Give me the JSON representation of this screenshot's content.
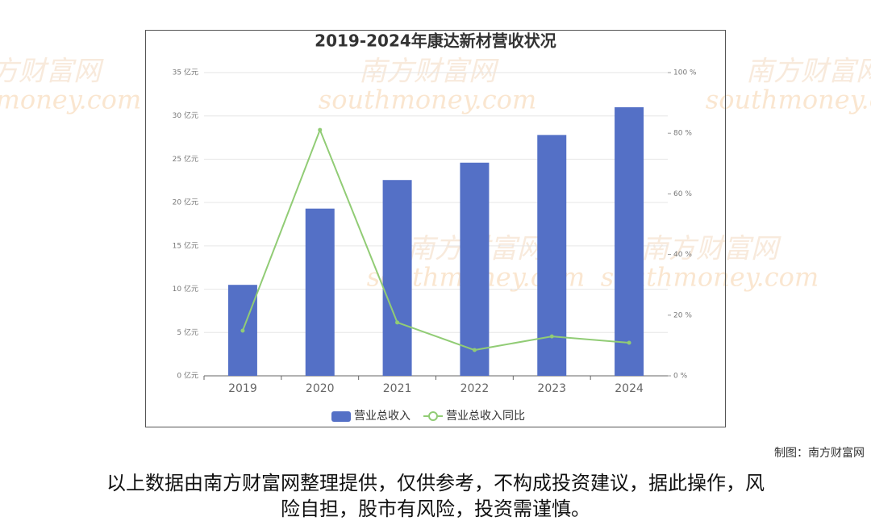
{
  "chart_data": {
    "type": "bar-line",
    "title": "2019-2024年康达新材营收状况",
    "categories": [
      "2019",
      "2020",
      "2021",
      "2022",
      "2023",
      "2024"
    ],
    "series": [
      {
        "name": "营业总收入",
        "type": "bar",
        "color": "#5470c6",
        "values": [
          10.5,
          19.3,
          22.6,
          24.6,
          27.8,
          31.0
        ]
      },
      {
        "name": "营业总收入同比",
        "type": "line",
        "axis": "y2",
        "color": "#91cc75",
        "values": [
          14.9,
          81.1,
          17.6,
          8.5,
          13.0,
          10.9
        ]
      }
    ],
    "ylim": [
      0,
      35
    ],
    "yticks": [
      {
        "value": 0,
        "label": "0 亿元"
      },
      {
        "value": 5,
        "label": "5 亿元"
      },
      {
        "value": 10,
        "label": "10 亿元"
      },
      {
        "value": 15,
        "label": "15 亿元"
      },
      {
        "value": 20,
        "label": "20 亿元"
      },
      {
        "value": 25,
        "label": "25 亿元"
      },
      {
        "value": 30,
        "label": "30 亿元"
      },
      {
        "value": 35,
        "label": "35 亿元"
      }
    ],
    "y2lim": [
      0,
      100
    ],
    "y2ticks": [
      {
        "value": 0,
        "label": "0 %"
      },
      {
        "value": 20,
        "label": "20 %"
      },
      {
        "value": 40,
        "label": "40 %"
      },
      {
        "value": 60,
        "label": "60 %"
      },
      {
        "value": 80,
        "label": "80 %"
      },
      {
        "value": 100,
        "label": "100 %"
      }
    ],
    "grid": true,
    "legend": "bottom"
  },
  "credit": "制图：南方财富网",
  "disclaimer": [
    "以上数据由南方财富网整理提供，仅供参考，不构成投资建议，据此操作，风",
    "险自担，股市有风险，投资需谨慎。"
  ],
  "watermark": [
    "南方财富网",
    "southmoney.com"
  ]
}
